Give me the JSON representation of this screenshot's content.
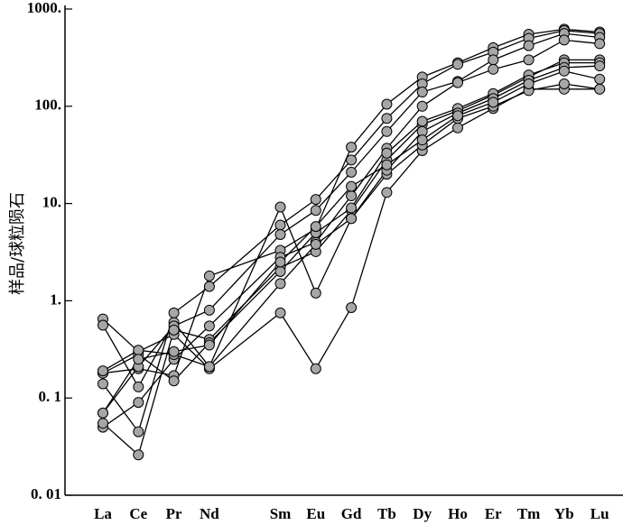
{
  "chart_data": {
    "type": "line",
    "y_label": "样品/球粒陨石",
    "categories": [
      "La",
      "Ce",
      "Pr",
      "Nd",
      "Sm",
      "Eu",
      "Gd",
      "Tb",
      "Dy",
      "Ho",
      "Er",
      "Tm",
      "Yb",
      "Lu"
    ],
    "log_scale": true,
    "ylim": [
      0.01,
      1000
    ],
    "yticks": [
      {
        "value": 0.01,
        "label": "0. 01"
      },
      {
        "value": 0.1,
        "label": "0. 1"
      },
      {
        "value": 1,
        "label": "1."
      },
      {
        "value": 10,
        "label": "10."
      },
      {
        "value": 100,
        "label": "100."
      },
      {
        "value": 1000,
        "label": "1000."
      }
    ],
    "marker_color": "#a6a6a6",
    "line_color": "#000000",
    "series": [
      {
        "values": [
          0.65,
          0.3,
          0.45,
          0.2,
          0.75,
          0.2,
          0.85,
          13,
          35,
          60,
          95,
          150,
          150,
          150
        ]
      },
      {
        "values": [
          0.56,
          0.13,
          0.6,
          0.21,
          9.2,
          1.2,
          7,
          20,
          40,
          75,
          100,
          145,
          170,
          150
        ]
      },
      {
        "values": [
          0.18,
          0.2,
          0.17,
          1.8,
          3.3,
          5.5,
          38,
          105,
          200,
          280,
          400,
          550,
          620,
          580
        ]
      },
      {
        "values": [
          0.14,
          0.045,
          0.75,
          1.4,
          6,
          11,
          28,
          75,
          170,
          270,
          360,
          500,
          600,
          560
        ]
      },
      {
        "values": [
          0.07,
          0.21,
          0.55,
          0.8,
          4.8,
          8.5,
          21,
          55,
          140,
          180,
          300,
          420,
          560,
          510
        ]
      },
      {
        "values": [
          0.05,
          0.09,
          0.25,
          0.55,
          2.8,
          4,
          12,
          37,
          100,
          175,
          240,
          300,
          480,
          440
        ]
      },
      {
        "values": [
          0.055,
          0.026,
          0.5,
          0.4,
          2.2,
          3.2,
          8.5,
          28,
          65,
          90,
          130,
          200,
          300,
          300
        ]
      },
      {
        "values": [
          0.18,
          0.28,
          0.15,
          0.37,
          2,
          5,
          9,
          33,
          70,
          95,
          135,
          210,
          280,
          280
        ]
      },
      {
        "values": [
          0.19,
          0.31,
          0.28,
          0.21,
          1.5,
          3.8,
          7,
          22,
          55,
          85,
          120,
          185,
          250,
          260
        ]
      },
      {
        "values": [
          0.07,
          0.25,
          0.3,
          0.35,
          2.5,
          5.8,
          15,
          25,
          45,
          80,
          110,
          170,
          230,
          190
        ]
      }
    ]
  }
}
